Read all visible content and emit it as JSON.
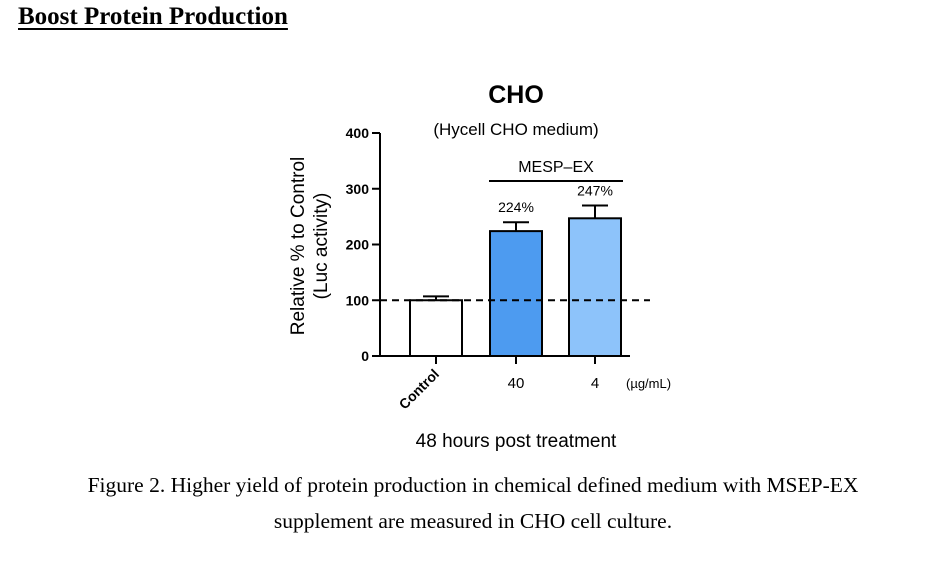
{
  "page": {
    "heading": "Boost Protein Production",
    "caption_line1": "Figure 2. Higher yield of protein production in chemical defined medium with MSEP-EX",
    "caption_line2": "supplement are measured in CHO cell culture."
  },
  "chart_data": {
    "type": "bar",
    "title": "CHO",
    "subtitle": "(Hycell CHO medium)",
    "group_label": "MESP–EX",
    "categories": [
      "Control",
      "40",
      "4"
    ],
    "unit_label": "(µg/mL)",
    "values": [
      100,
      224,
      247
    ],
    "errors": [
      7,
      16,
      23
    ],
    "data_labels": [
      "",
      "224%",
      "247%"
    ],
    "bar_colors": [
      "#ffffff",
      "#4d9bf0",
      "#8dc3fa"
    ],
    "ylabel_line1": "Relative % to Control",
    "ylabel_line2": "(Luc activity)",
    "xlabel": "48 hours post treatment",
    "ylim": [
      0,
      400
    ],
    "yticks": [
      0,
      100,
      200,
      300,
      400
    ],
    "reference_line": 100,
    "grid": false
  }
}
